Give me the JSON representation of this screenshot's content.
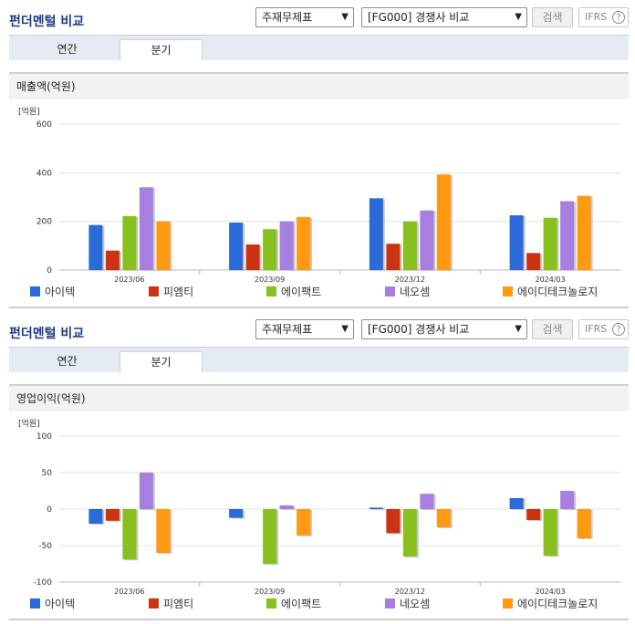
{
  "section_title": "펀더멘털 비교",
  "select_statement": "주재무제표",
  "select_compare": "[FG000] 경쟁사 비교",
  "search_label": "검색",
  "ifrs_label": "IFRS",
  "help_glyph": "?",
  "tabs": [
    "연간",
    "분기"
  ],
  "active_tab": "분기",
  "panels": [
    {
      "title": "매출액(억원)",
      "unit": "[억원]"
    },
    {
      "title": "영업이익(억원)",
      "unit": "[억원]"
    }
  ],
  "legend": [
    {
      "name": "아이텍",
      "color": "#2a6bd9"
    },
    {
      "name": "피엠티",
      "color": "#cc3311"
    },
    {
      "name": "에이팩트",
      "color": "#88c020"
    },
    {
      "name": "네오셈",
      "color": "#a77fe0"
    },
    {
      "name": "에이디테크놀로지",
      "color": "#ff9911"
    }
  ],
  "chart_data": [
    {
      "type": "bar",
      "title": "매출액(억원)",
      "ylabel": "[억원]",
      "ylim": [
        0,
        600
      ],
      "yticks": [
        0,
        200,
        400,
        600
      ],
      "categories": [
        "2023/06",
        "2023/09",
        "2023/12",
        "2024/03"
      ],
      "series": [
        {
          "name": "아이텍",
          "values": [
            185,
            195,
            295,
            225
          ]
        },
        {
          "name": "피엠티",
          "values": [
            80,
            105,
            108,
            70
          ]
        },
        {
          "name": "에이팩트",
          "values": [
            222,
            168,
            200,
            215
          ]
        },
        {
          "name": "네오셈",
          "values": [
            340,
            200,
            245,
            283
          ]
        },
        {
          "name": "에이디테크놀로지",
          "values": [
            200,
            218,
            393,
            305
          ]
        }
      ]
    },
    {
      "type": "bar",
      "title": "영업이익(억원)",
      "ylabel": "[억원]",
      "ylim": [
        -100,
        100
      ],
      "yticks": [
        -100,
        -50,
        0,
        50,
        100
      ],
      "categories": [
        "2023/06",
        "2023/09",
        "2023/12",
        "2024/03"
      ],
      "series": [
        {
          "name": "아이텍",
          "values": [
            -20,
            -12,
            2,
            15
          ]
        },
        {
          "name": "피엠티",
          "values": [
            -16,
            0,
            -33,
            -15
          ]
        },
        {
          "name": "에이팩트",
          "values": [
            -69,
            -75,
            -65,
            -64
          ]
        },
        {
          "name": "네오셈",
          "values": [
            50,
            5,
            21,
            25
          ]
        },
        {
          "name": "에이디테크놀로지",
          "values": [
            -60,
            -36,
            -25,
            -40
          ]
        }
      ]
    }
  ]
}
